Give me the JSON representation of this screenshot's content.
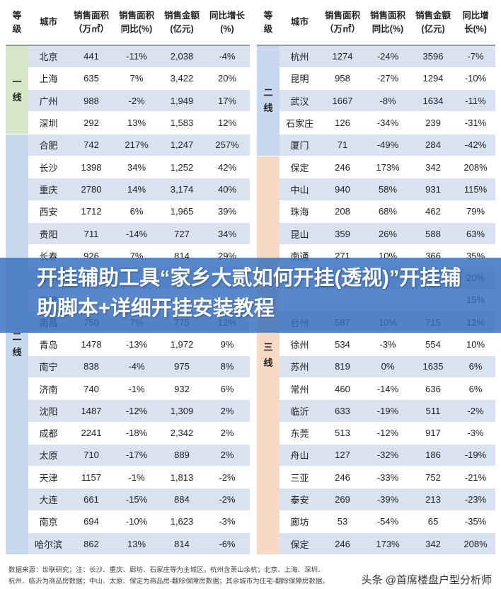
{
  "headers": [
    "等级",
    "城市",
    "销售面积（万㎡）",
    "销售面积同比(%)",
    "销售金额（亿元）",
    "同比增长(%)"
  ],
  "header_lines": [
    [
      "等",
      "级"
    ],
    [
      "城市"
    ],
    [
      "销售面积",
      "（万㎡）"
    ],
    [
      "销售面积",
      "同比(%)"
    ],
    [
      "销售金额",
      "(亿元)"
    ],
    [
      "同比增长",
      "(%)"
    ]
  ],
  "header_lines_right": [
    [
      "等",
      "级"
    ],
    [
      "城市"
    ],
    [
      "销售面积",
      "（万㎡）"
    ],
    [
      "销售面积",
      "同比(%)"
    ],
    [
      "销售金额",
      "(亿元)"
    ],
    [
      "同比增",
      "长(%)"
    ]
  ],
  "tiers_left": [
    {
      "label": "一线",
      "chars": [
        "一",
        "线"
      ],
      "rows": 4,
      "color": "#d6e8c7"
    },
    {
      "label": "二线",
      "chars": [
        "二",
        "线"
      ],
      "rows": 19,
      "color": "#c7d8ef"
    }
  ],
  "tiers_right": [
    {
      "label": "二线",
      "chars": [
        "二",
        "线"
      ],
      "rows": 5,
      "color": "#c7d8ef"
    },
    {
      "label": "三线",
      "chars": [
        "三",
        "线"
      ],
      "rows": 18,
      "color": "#f8d9c6"
    }
  ],
  "left_rows": [
    [
      "北京",
      "441",
      "-11%",
      "2,038",
      "-4%"
    ],
    [
      "上海",
      "635",
      "7%",
      "3,422",
      "20%"
    ],
    [
      "广州",
      "988",
      "-2%",
      "1,949",
      "17%"
    ],
    [
      "深圳",
      "292",
      "13%",
      "1,583",
      "12%"
    ],
    [
      "合肥",
      "742",
      "217%",
      "1,247",
      "257%"
    ],
    [
      "长沙",
      "1398",
      "34%",
      "1,252",
      "42%"
    ],
    [
      "重庆",
      "2780",
      "14%",
      "3,174",
      "40%"
    ],
    [
      "西安",
      "1712",
      "6%",
      "1,965",
      "39%"
    ],
    [
      "贵阳",
      "711",
      "-14%",
      "727",
      "34%"
    ],
    [
      "长春",
      "926",
      "7%",
      "814",
      "29%"
    ],
    [
      "郑州",
      "",
      "",
      "",
      ""
    ],
    [
      "宁波",
      "",
      "",
      "",
      ""
    ],
    [
      "南昌",
      "750",
      "7%",
      "775",
      "12%"
    ],
    [
      "青岛",
      "1478",
      "-13%",
      "1,972",
      "9%"
    ],
    [
      "南宁",
      "838",
      "-4%",
      "975",
      "8%"
    ],
    [
      "济南",
      "740",
      "-1%",
      "932",
      "6%"
    ],
    [
      "沈阳",
      "1487",
      "-12%",
      "1,309",
      "2%"
    ],
    [
      "成都",
      "2241",
      "-18%",
      "2,342",
      "2%"
    ],
    [
      "太原",
      "710",
      "-17%",
      "889",
      "2%"
    ],
    [
      "天津",
      "1157",
      "-1%",
      "1,813",
      "-2%"
    ],
    [
      "大连",
      "661",
      "-15%",
      "884",
      "-2%"
    ],
    [
      "南京",
      "694",
      "-10%",
      "1,623",
      "-3%"
    ],
    [
      "哈尔滨",
      "862",
      "13%",
      "814",
      "-6%"
    ]
  ],
  "right_rows": [
    [
      "杭州",
      "1274",
      "-24%",
      "3596",
      "-7%"
    ],
    [
      "昆明",
      "958",
      "-27%",
      "1294",
      "-10%"
    ],
    [
      "武汉",
      "1667",
      "-8%",
      "1634",
      "-11%"
    ],
    [
      "石家庄",
      "126",
      "-34%",
      "239",
      "-31%"
    ],
    [
      "厦门",
      "71",
      "-49%",
      "284",
      "-42%"
    ],
    [
      "保定",
      "246",
      "173%",
      "342",
      "208%"
    ],
    [
      "中山",
      "940",
      "58%",
      "931",
      "115%"
    ],
    [
      "珠海",
      "208",
      "68%",
      "462",
      "79%"
    ],
    [
      "昆山",
      "359",
      "26%",
      "588",
      "63%"
    ],
    [
      "南通",
      "271",
      "10%",
      "366",
      "35%"
    ],
    [
      "",
      "",
      "",
      "",
      "20%"
    ],
    [
      "",
      "",
      "",
      "",
      "15%"
    ],
    [
      "台州",
      "587",
      "10%",
      "715",
      "12%"
    ],
    [
      "徐州",
      "534",
      "-3%",
      "554",
      "10%"
    ],
    [
      "苏州",
      "819",
      "0%",
      "1635",
      "6%"
    ],
    [
      "常州",
      "460",
      "-14%",
      "636",
      "6%"
    ],
    [
      "临沂",
      "633",
      "-19%",
      "511",
      "-2%"
    ],
    [
      "东莞",
      "513",
      "-12%",
      "917",
      "-3%"
    ],
    [
      "舟山",
      "127",
      "-32%",
      "186",
      "-19%"
    ],
    [
      "三亚",
      "246",
      "-33%",
      "752",
      "-21%"
    ],
    [
      "泰安",
      "269",
      "-39%",
      "213",
      "-23%"
    ],
    [
      "廊坊",
      "53",
      "-54%",
      "65",
      "-35%"
    ],
    [
      "保定",
      "246",
      "173%",
      "342",
      "208%"
    ]
  ],
  "banner": {
    "title": "开挂辅助工具“家乡大贰如何开挂(透视)”开挂辅助脚本+详细开挂安装教程"
  },
  "footer": {
    "line1": "数据来源：世联研究；注：长沙、重庆、廊坊、石家庄等为主城区，杭州含萧山余杭；北京、上海、深圳、",
    "line2": "杭州、临沂为商品房数据；中山、太原、保定为商品房-翻除保障房数据；其余城市为住宅-翻除保障房数据。"
  },
  "watermark": "头条 @首席楼盘户型分析师"
}
